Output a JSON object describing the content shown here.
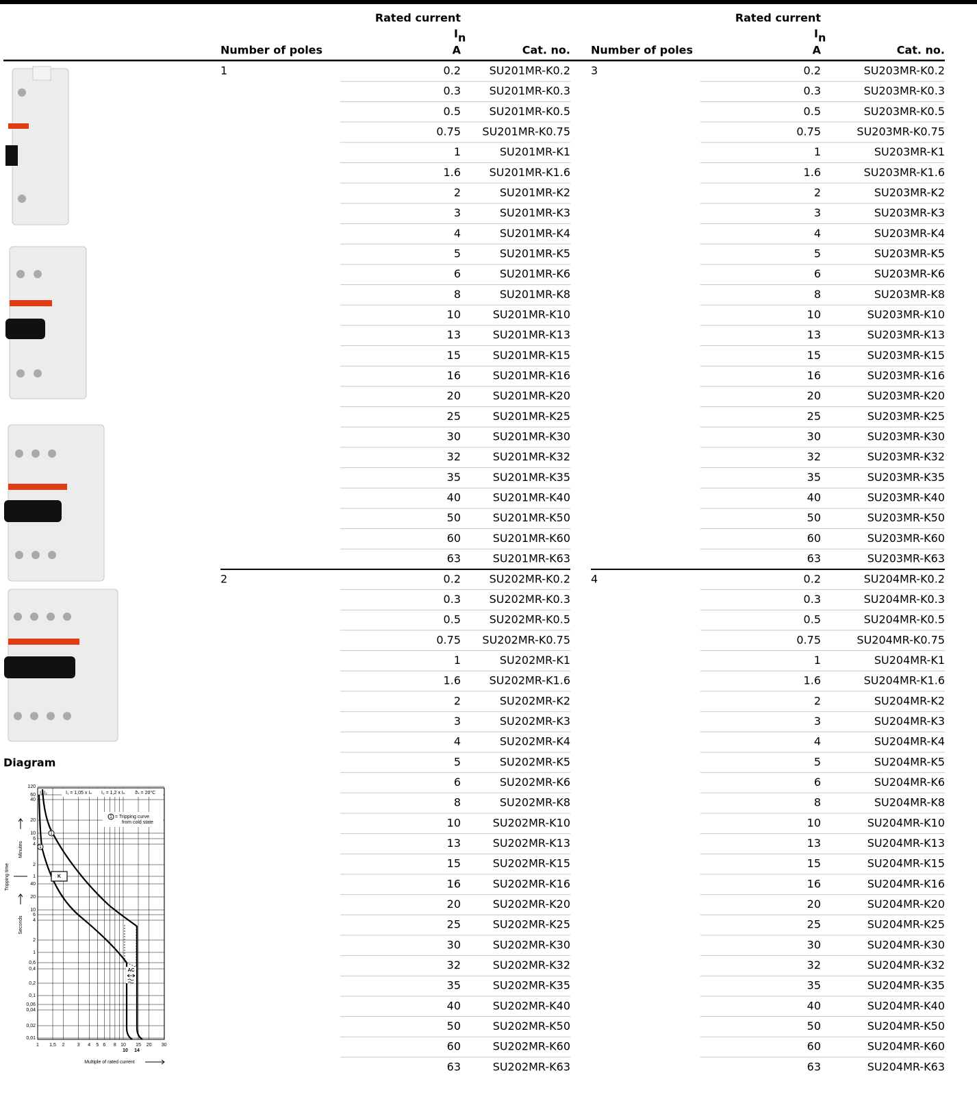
{
  "tables": [
    {
      "header": {
        "rated_current": "Rated current",
        "symbol": "I",
        "subscript": "n",
        "unit": "A",
        "cat_no": "Cat. no.",
        "poles": "Number of poles"
      },
      "groups": [
        {
          "poles": 1,
          "rows": [
            [
              0.2,
              "SU201MR-K0.2"
            ],
            [
              0.3,
              "SU201MR-K0.3"
            ],
            [
              0.5,
              "SU201MR-K0.5"
            ],
            [
              0.75,
              "SU201MR-K0.75"
            ],
            [
              1,
              "SU201MR-K1"
            ],
            [
              1.6,
              "SU201MR-K1.6"
            ],
            [
              2,
              "SU201MR-K2"
            ],
            [
              3,
              "SU201MR-K3"
            ],
            [
              4,
              "SU201MR-K4"
            ],
            [
              5,
              "SU201MR-K5"
            ],
            [
              6,
              "SU201MR-K6"
            ],
            [
              8,
              "SU201MR-K8"
            ],
            [
              10,
              "SU201MR-K10"
            ],
            [
              13,
              "SU201MR-K13"
            ],
            [
              15,
              "SU201MR-K15"
            ],
            [
              16,
              "SU201MR-K16"
            ],
            [
              20,
              "SU201MR-K20"
            ],
            [
              25,
              "SU201MR-K25"
            ],
            [
              30,
              "SU201MR-K30"
            ],
            [
              32,
              "SU201MR-K32"
            ],
            [
              35,
              "SU201MR-K35"
            ],
            [
              40,
              "SU201MR-K40"
            ],
            [
              50,
              "SU201MR-K50"
            ],
            [
              60,
              "SU201MR-K60"
            ],
            [
              63,
              "SU201MR-K63"
            ]
          ]
        },
        {
          "poles": 2,
          "rows": [
            [
              0.2,
              "SU202MR-K0.2"
            ],
            [
              0.3,
              "SU202MR-K0.3"
            ],
            [
              0.5,
              "SU202MR-K0.5"
            ],
            [
              0.75,
              "SU202MR-K0.75"
            ],
            [
              1,
              "SU202MR-K1"
            ],
            [
              1.6,
              "SU202MR-K1.6"
            ],
            [
              2,
              "SU202MR-K2"
            ],
            [
              3,
              "SU202MR-K3"
            ],
            [
              4,
              "SU202MR-K4"
            ],
            [
              5,
              "SU202MR-K5"
            ],
            [
              6,
              "SU202MR-K6"
            ],
            [
              8,
              "SU202MR-K8"
            ],
            [
              10,
              "SU202MR-K10"
            ],
            [
              13,
              "SU202MR-K13"
            ],
            [
              15,
              "SU202MR-K15"
            ],
            [
              16,
              "SU202MR-K16"
            ],
            [
              20,
              "SU202MR-K20"
            ],
            [
              25,
              "SU202MR-K25"
            ],
            [
              30,
              "SU202MR-K30"
            ],
            [
              32,
              "SU202MR-K32"
            ],
            [
              35,
              "SU202MR-K35"
            ],
            [
              40,
              "SU202MR-K40"
            ],
            [
              50,
              "SU202MR-K50"
            ],
            [
              60,
              "SU202MR-K60"
            ],
            [
              63,
              "SU202MR-K63"
            ]
          ]
        }
      ]
    },
    {
      "header": {
        "rated_current": "Rated current",
        "symbol": "I",
        "subscript": "n",
        "unit": "A",
        "cat_no": "Cat. no.",
        "poles": "Number of poles"
      },
      "groups": [
        {
          "poles": 3,
          "rows": [
            [
              0.2,
              "SU203MR-K0.2"
            ],
            [
              0.3,
              "SU203MR-K0.3"
            ],
            [
              0.5,
              "SU203MR-K0.5"
            ],
            [
              0.75,
              "SU203MR-K0.75"
            ],
            [
              1,
              "SU203MR-K1"
            ],
            [
              1.6,
              "SU203MR-K1.6"
            ],
            [
              2,
              "SU203MR-K2"
            ],
            [
              3,
              "SU203MR-K3"
            ],
            [
              4,
              "SU203MR-K4"
            ],
            [
              5,
              "SU203MR-K5"
            ],
            [
              6,
              "SU203MR-K6"
            ],
            [
              8,
              "SU203MR-K8"
            ],
            [
              10,
              "SU203MR-K10"
            ],
            [
              13,
              "SU203MR-K13"
            ],
            [
              15,
              "SU203MR-K15"
            ],
            [
              16,
              "SU203MR-K16"
            ],
            [
              20,
              "SU203MR-K20"
            ],
            [
              25,
              "SU203MR-K25"
            ],
            [
              30,
              "SU203MR-K30"
            ],
            [
              32,
              "SU203MR-K32"
            ],
            [
              35,
              "SU203MR-K35"
            ],
            [
              40,
              "SU203MR-K40"
            ],
            [
              50,
              "SU203MR-K50"
            ],
            [
              60,
              "SU203MR-K60"
            ],
            [
              63,
              "SU203MR-K63"
            ]
          ]
        },
        {
          "poles": 4,
          "rows": [
            [
              0.2,
              "SU204MR-K0.2"
            ],
            [
              0.3,
              "SU204MR-K0.3"
            ],
            [
              0.5,
              "SU204MR-K0.5"
            ],
            [
              0.75,
              "SU204MR-K0.75"
            ],
            [
              1,
              "SU204MR-K1"
            ],
            [
              1.6,
              "SU204MR-K1.6"
            ],
            [
              2,
              "SU204MR-K2"
            ],
            [
              3,
              "SU204MR-K3"
            ],
            [
              4,
              "SU204MR-K4"
            ],
            [
              5,
              "SU204MR-K5"
            ],
            [
              6,
              "SU204MR-K6"
            ],
            [
              8,
              "SU204MR-K8"
            ],
            [
              10,
              "SU204MR-K10"
            ],
            [
              13,
              "SU204MR-K13"
            ],
            [
              15,
              "SU204MR-K15"
            ],
            [
              16,
              "SU204MR-K16"
            ],
            [
              20,
              "SU204MR-K20"
            ],
            [
              25,
              "SU204MR-K25"
            ],
            [
              30,
              "SU204MR-K30"
            ],
            [
              32,
              "SU204MR-K32"
            ],
            [
              35,
              "SU204MR-K35"
            ],
            [
              40,
              "SU204MR-K40"
            ],
            [
              50,
              "SU204MR-K50"
            ],
            [
              60,
              "SU204MR-K60"
            ],
            [
              63,
              "SU204MR-K63"
            ]
          ]
        }
      ]
    }
  ],
  "diagram": {
    "title": "Diagram",
    "y_labels": [
      "120",
      "60",
      "40",
      "20",
      "10",
      "6",
      "4",
      "2",
      "1",
      "40",
      "20",
      "10",
      "6",
      "4",
      "2",
      "1",
      "0,6",
      "0,4",
      "0,2",
      "0,1",
      "0,06",
      "0,04",
      "0,02",
      "0,01"
    ],
    "x_labels": [
      "1",
      "1,5",
      "2",
      "3",
      "4",
      "5",
      "6",
      "8",
      "10",
      "15",
      "20",
      "30"
    ],
    "x_labels_bold": [
      "10",
      "14"
    ],
    "x_title": "Multiple of rated current",
    "y_title": "Tripping time",
    "minutes": "Minutes",
    "seconds": "Seconds",
    "conditions": [
      "I₁ = 1,05 x Iₙ",
      "I₂ = 1,2 x Iₙ",
      "ϑₙ = 20°C"
    ],
    "i_labels": "I₁ I₂",
    "legend_marker": "1",
    "legend": [
      "= Tripping curve",
      "from cold state"
    ],
    "curve": "K",
    "ac": "AC"
  }
}
